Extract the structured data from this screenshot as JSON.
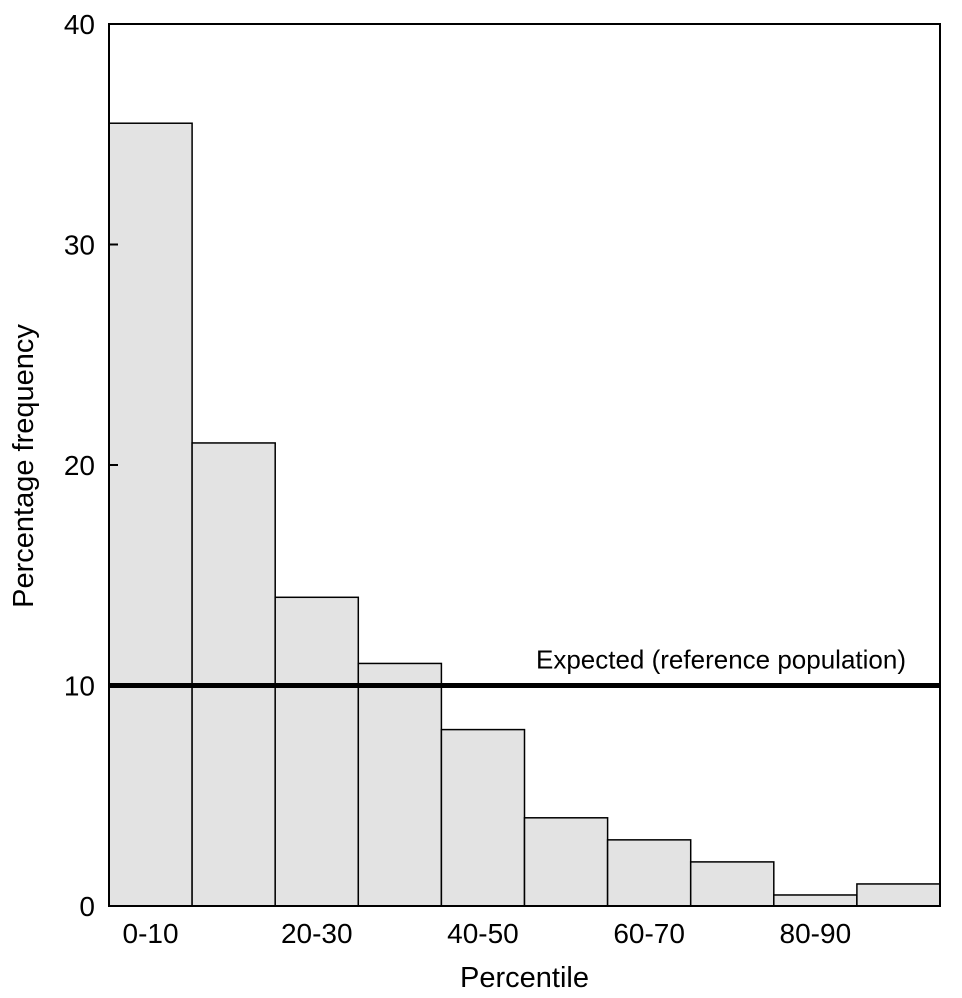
{
  "chart_data": {
    "type": "bar",
    "xlabel": "Percentile",
    "ylabel": "Percentage frequency",
    "ylim": [
      0,
      40
    ],
    "yticks": [
      "0",
      "10",
      "20",
      "30",
      "40"
    ],
    "categories": [
      "0-10",
      "10-20",
      "20-30",
      "30-40",
      "40-50",
      "50-60",
      "60-70",
      "70-80",
      "80-90",
      "90-100"
    ],
    "tick_labels": [
      "0-10",
      "",
      "20-30",
      "",
      "40-50",
      "",
      "60-70",
      "",
      "80-90",
      ""
    ],
    "values": [
      35.5,
      21,
      14,
      11,
      8,
      4,
      3,
      2,
      0.5,
      1
    ],
    "bar_color": "#e3e3e3",
    "reference_line": {
      "value": 10,
      "label": "Expected (reference population)",
      "color": "#000000"
    },
    "grid": false,
    "legend": "none"
  }
}
